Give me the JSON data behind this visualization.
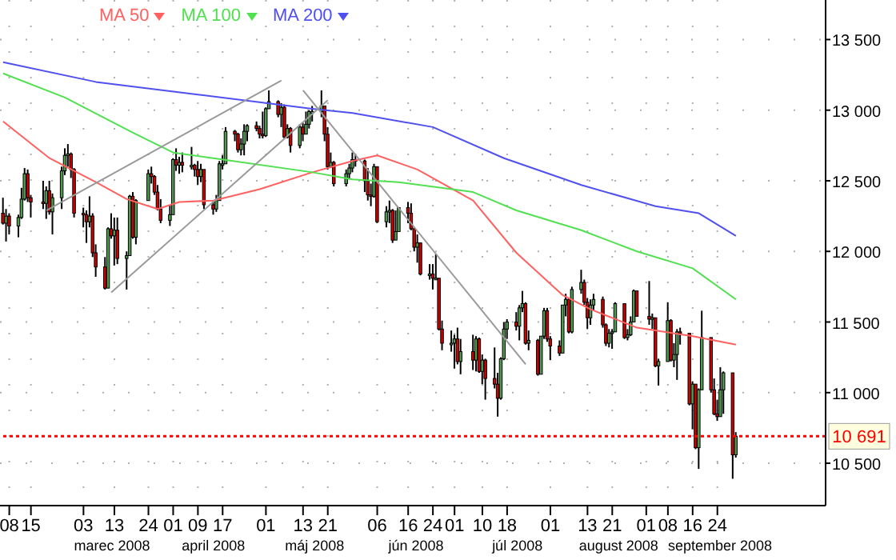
{
  "chart_data": {
    "type": "candlestick",
    "legend": "top left",
    "grid": true,
    "xlim": [
      "2008-02-05",
      "2008-10-29"
    ],
    "xticks": [
      {
        "value": "2008-02-08",
        "label": "08"
      },
      {
        "value": "2008-02-15",
        "label": "15"
      },
      {
        "value": "2008-03-03",
        "label": "03"
      },
      {
        "value": "2008-03-13",
        "label": "13"
      },
      {
        "value": "2008-03-24",
        "label": "24"
      },
      {
        "value": "2008-04-01",
        "label": "01"
      },
      {
        "value": "2008-04-09",
        "label": "09"
      },
      {
        "value": "2008-04-17",
        "label": "17"
      },
      {
        "value": "2008-05-01",
        "label": "01"
      },
      {
        "value": "2008-05-13",
        "label": "13"
      },
      {
        "value": "2008-05-21",
        "label": "21"
      },
      {
        "value": "2008-06-06",
        "label": "06"
      },
      {
        "value": "2008-06-16",
        "label": "16"
      },
      {
        "value": "2008-06-24",
        "label": "24"
      },
      {
        "value": "2008-07-01",
        "label": "01"
      },
      {
        "value": "2008-07-10",
        "label": "10"
      },
      {
        "value": "2008-07-18",
        "label": "18"
      },
      {
        "value": "2008-08-01",
        "label": "01"
      },
      {
        "value": "2008-08-13",
        "label": "13"
      },
      {
        "value": "2008-08-21",
        "label": "21"
      },
      {
        "value": "2008-09-01",
        "label": "01"
      },
      {
        "value": "2008-09-08",
        "label": "08"
      },
      {
        "value": "2008-09-16",
        "label": "16"
      },
      {
        "value": "2008-09-24",
        "label": "24"
      }
    ],
    "ylim": [
      10200,
      13780
    ],
    "yticks": [
      {
        "value": 10500,
        "label": "10 500"
      },
      {
        "value": 11000,
        "label": "11 000"
      },
      {
        "value": 11500,
        "label": "11 500"
      },
      {
        "value": 12000,
        "label": "12 000"
      },
      {
        "value": 12500,
        "label": "12 500"
      },
      {
        "value": 13000,
        "label": "13 000"
      },
      {
        "value": 13500,
        "label": "13 500"
      }
    ],
    "annotations": [
      "marec 2008",
      "april 2008",
      "máj 2008",
      "jún 2008",
      "júl 2008",
      "august 2008",
      "september 2008"
    ],
    "ref_lines": [
      {
        "axis": "y",
        "value": 10691,
        "label": "10 691",
        "color": "#ff0000",
        "line_style": "dotted"
      }
    ],
    "x": [
      "2008-02-06",
      "2008-02-07",
      "2008-02-08",
      "2008-02-11",
      "2008-02-12",
      "2008-02-13",
      "2008-02-14",
      "2008-02-15",
      "2008-02-19",
      "2008-02-20",
      "2008-02-21",
      "2008-02-22",
      "2008-02-25",
      "2008-02-26",
      "2008-02-27",
      "2008-02-28",
      "2008-02-29",
      "2008-03-03",
      "2008-03-04",
      "2008-03-05",
      "2008-03-06",
      "2008-03-07",
      "2008-03-10",
      "2008-03-11",
      "2008-03-12",
      "2008-03-13",
      "2008-03-14",
      "2008-03-17",
      "2008-03-18",
      "2008-03-19",
      "2008-03-20",
      "2008-03-24",
      "2008-03-25",
      "2008-03-26",
      "2008-03-27",
      "2008-03-28",
      "2008-03-31",
      "2008-04-01",
      "2008-04-02",
      "2008-04-03",
      "2008-04-04",
      "2008-04-07",
      "2008-04-08",
      "2008-04-09",
      "2008-04-10",
      "2008-04-11",
      "2008-04-14",
      "2008-04-15",
      "2008-04-16",
      "2008-04-17",
      "2008-04-18",
      "2008-04-21",
      "2008-04-22",
      "2008-04-23",
      "2008-04-24",
      "2008-04-25",
      "2008-04-28",
      "2008-04-29",
      "2008-04-30",
      "2008-05-01",
      "2008-05-02",
      "2008-05-05",
      "2008-05-06",
      "2008-05-07",
      "2008-05-08",
      "2008-05-09",
      "2008-05-12",
      "2008-05-13",
      "2008-05-14",
      "2008-05-15",
      "2008-05-16",
      "2008-05-19",
      "2008-05-20",
      "2008-05-21",
      "2008-05-22",
      "2008-05-23",
      "2008-05-27",
      "2008-05-28",
      "2008-05-29",
      "2008-05-30",
      "2008-06-02",
      "2008-06-03",
      "2008-06-04",
      "2008-06-05",
      "2008-06-06",
      "2008-06-09",
      "2008-06-10",
      "2008-06-11",
      "2008-06-12",
      "2008-06-13",
      "2008-06-16",
      "2008-06-17",
      "2008-06-18",
      "2008-06-19",
      "2008-06-20",
      "2008-06-23",
      "2008-06-24",
      "2008-06-25",
      "2008-06-26",
      "2008-06-27",
      "2008-06-30",
      "2008-07-01",
      "2008-07-02",
      "2008-07-03",
      "2008-07-07",
      "2008-07-08",
      "2008-07-09",
      "2008-07-10",
      "2008-07-11",
      "2008-07-14",
      "2008-07-15",
      "2008-07-16",
      "2008-07-17",
      "2008-07-18",
      "2008-07-21",
      "2008-07-22",
      "2008-07-23",
      "2008-07-24",
      "2008-07-25",
      "2008-07-28",
      "2008-07-29",
      "2008-07-30",
      "2008-07-31",
      "2008-08-01",
      "2008-08-04",
      "2008-08-05",
      "2008-08-06",
      "2008-08-07",
      "2008-08-08",
      "2008-08-11",
      "2008-08-12",
      "2008-08-13",
      "2008-08-14",
      "2008-08-15",
      "2008-08-18",
      "2008-08-19",
      "2008-08-20",
      "2008-08-21",
      "2008-08-22",
      "2008-08-25",
      "2008-08-26",
      "2008-08-27",
      "2008-08-28",
      "2008-08-29",
      "2008-09-02",
      "2008-09-03",
      "2008-09-04",
      "2008-09-05",
      "2008-09-08",
      "2008-09-09",
      "2008-09-10",
      "2008-09-11",
      "2008-09-12",
      "2008-09-15",
      "2008-09-16",
      "2008-09-17",
      "2008-09-18",
      "2008-09-19",
      "2008-09-22",
      "2008-09-23",
      "2008-09-24",
      "2008-09-25",
      "2008-09-26",
      "2008-09-29",
      "2008-09-30"
    ],
    "ohlc": [
      [
        12270,
        12380,
        12190,
        12200
      ],
      [
        12200,
        12300,
        12070,
        12250
      ],
      [
        12250,
        12270,
        12120,
        12180
      ],
      [
        12180,
        12260,
        12100,
        12240
      ],
      [
        12240,
        12450,
        12230,
        12370
      ],
      [
        12370,
        12590,
        12360,
        12550
      ],
      [
        12550,
        12580,
        12350,
        12380
      ],
      [
        12380,
        12400,
        12240,
        12350
      ],
      [
        12350,
        12500,
        12300,
        12340
      ],
      [
        12340,
        12460,
        12230,
        12430
      ],
      [
        12430,
        12500,
        12260,
        12280
      ],
      [
        12280,
        12410,
        12120,
        12380
      ],
      [
        12380,
        12600,
        12300,
        12570
      ],
      [
        12570,
        12730,
        12540,
        12680
      ],
      [
        12680,
        12760,
        12600,
        12690
      ],
      [
        12690,
        12700,
        12520,
        12580
      ],
      [
        12580,
        12590,
        12240,
        12270
      ],
      [
        12270,
        12310,
        12170,
        12260
      ],
      [
        12260,
        12290,
        12060,
        12210
      ],
      [
        12210,
        12390,
        12170,
        12250
      ],
      [
        12250,
        12270,
        11960,
        11990
      ],
      [
        11990,
        12050,
        11820,
        11890
      ],
      [
        11890,
        11960,
        11730,
        11740
      ],
      [
        11740,
        12170,
        11740,
        12160
      ],
      [
        12160,
        12270,
        12090,
        12110
      ],
      [
        12110,
        12240,
        11900,
        12150
      ],
      [
        12150,
        12240,
        11910,
        11950
      ],
      [
        11950,
        12000,
        11730,
        11970
      ],
      [
        11970,
        12400,
        11970,
        12390
      ],
      [
        12390,
        12420,
        12090,
        12100
      ],
      [
        12100,
        12370,
        12050,
        12360
      ],
      [
        12360,
        12580,
        12360,
        12550
      ],
      [
        12550,
        12600,
        12480,
        12530
      ],
      [
        12530,
        12540,
        12400,
        12420
      ],
      [
        12420,
        12470,
        12290,
        12300
      ],
      [
        12300,
        12370,
        12200,
        12220
      ],
      [
        12220,
        12330,
        12180,
        12260
      ],
      [
        12260,
        12660,
        12260,
        12650
      ],
      [
        12650,
        12730,
        12570,
        12610
      ],
      [
        12610,
        12670,
        12550,
        12630
      ],
      [
        12630,
        12700,
        12560,
        12610
      ],
      [
        12610,
        12740,
        12580,
        12610
      ],
      [
        12610,
        12620,
        12530,
        12580
      ],
      [
        12580,
        12640,
        12470,
        12530
      ],
      [
        12530,
        12620,
        12490,
        12580
      ],
      [
        12580,
        12580,
        12300,
        12330
      ],
      [
        12330,
        12360,
        12260,
        12300
      ],
      [
        12300,
        12400,
        12280,
        12360
      ],
      [
        12360,
        12640,
        12360,
        12620
      ],
      [
        12620,
        12680,
        12580,
        12620
      ],
      [
        12620,
        12880,
        12620,
        12850
      ],
      [
        12850,
        12860,
        12780,
        12830
      ],
      [
        12830,
        12840,
        12700,
        12720
      ],
      [
        12720,
        12800,
        12680,
        12760
      ],
      [
        12760,
        12900,
        12680,
        12850
      ],
      [
        12850,
        12900,
        12780,
        12890
      ],
      [
        12890,
        12920,
        12850,
        12870
      ],
      [
        12870,
        12890,
        12800,
        12830
      ],
      [
        12830,
        12990,
        12800,
        12820
      ],
      [
        12820,
        13020,
        12810,
        13010
      ],
      [
        13010,
        13140,
        13010,
        13060
      ],
      [
        13060,
        13070,
        12950,
        12970
      ],
      [
        12970,
        13050,
        12880,
        13020
      ],
      [
        13020,
        13040,
        12800,
        12810
      ],
      [
        12810,
        12900,
        12800,
        12870
      ],
      [
        12870,
        12880,
        12700,
        12750
      ],
      [
        12750,
        12900,
        12730,
        12880
      ],
      [
        12880,
        12910,
        12780,
        12830
      ],
      [
        12830,
        12990,
        12830,
        12900
      ],
      [
        12900,
        13000,
        12870,
        12990
      ],
      [
        12990,
        13030,
        12920,
        12990
      ],
      [
        12990,
        13140,
        12950,
        13030
      ],
      [
        13030,
        13030,
        12780,
        12830
      ],
      [
        12830,
        12880,
        12580,
        12600
      ],
      [
        12600,
        12700,
        12590,
        12630
      ],
      [
        12630,
        12640,
        12460,
        12480
      ],
      [
        12480,
        12580,
        12460,
        12550
      ],
      [
        12550,
        12620,
        12510,
        12590
      ],
      [
        12590,
        12700,
        12560,
        12650
      ],
      [
        12650,
        12690,
        12600,
        12640
      ],
      [
        12640,
        12650,
        12420,
        12500
      ],
      [
        12500,
        12590,
        12360,
        12400
      ],
      [
        12400,
        12480,
        12320,
        12390
      ],
      [
        12390,
        12620,
        12380,
        12600
      ],
      [
        12600,
        12600,
        12200,
        12210
      ],
      [
        12210,
        12320,
        12170,
        12280
      ],
      [
        12280,
        12360,
        12200,
        12290
      ],
      [
        12290,
        12300,
        12060,
        12080
      ],
      [
        12080,
        12290,
        12080,
        12140
      ],
      [
        12140,
        12310,
        12140,
        12310
      ],
      [
        12310,
        12350,
        12200,
        12270
      ],
      [
        12270,
        12340,
        12150,
        12160
      ],
      [
        12160,
        12170,
        12000,
        12030
      ],
      [
        12030,
        12120,
        11920,
        12060
      ],
      [
        12060,
        12060,
        11830,
        11840
      ],
      [
        11840,
        11910,
        11800,
        11840
      ],
      [
        11840,
        11910,
        11730,
        11810
      ],
      [
        11810,
        11980,
        11800,
        11810
      ],
      [
        11810,
        11810,
        11440,
        11450
      ],
      [
        11450,
        11510,
        11300,
        11350
      ],
      [
        11350,
        11440,
        11290,
        11350
      ],
      [
        11350,
        11410,
        11170,
        11380
      ],
      [
        11380,
        11460,
        11200,
        11220
      ],
      [
        11220,
        11380,
        11130,
        11290
      ],
      [
        11290,
        11410,
        11160,
        11230
      ],
      [
        11230,
        11400,
        11150,
        11380
      ],
      [
        11380,
        11390,
        11140,
        11150
      ],
      [
        11150,
        11270,
        11060,
        11230
      ],
      [
        11230,
        11240,
        10950,
        11100
      ],
      [
        11100,
        11320,
        11030,
        11060
      ],
      [
        11060,
        11140,
        10830,
        10960
      ],
      [
        10960,
        11250,
        10950,
        11240
      ],
      [
        11240,
        11500,
        11230,
        11450
      ],
      [
        11450,
        11520,
        11380,
        11500
      ],
      [
        11500,
        11570,
        11440,
        11470
      ],
      [
        11470,
        11620,
        11370,
        11600
      ],
      [
        11600,
        11720,
        11570,
        11630
      ],
      [
        11630,
        11640,
        11340,
        11350
      ],
      [
        11350,
        11440,
        11300,
        11370
      ],
      [
        11370,
        11380,
        11120,
        11130
      ],
      [
        11130,
        11400,
        11130,
        11400
      ],
      [
        11400,
        11600,
        11380,
        11580
      ],
      [
        11580,
        11600,
        11360,
        11380
      ],
      [
        11380,
        11400,
        11230,
        11330
      ],
      [
        11330,
        11370,
        11260,
        11280
      ],
      [
        11280,
        11620,
        11280,
        11620
      ],
      [
        11620,
        11700,
        11540,
        11660
      ],
      [
        11660,
        11670,
        11420,
        11430
      ],
      [
        11430,
        11750,
        11420,
        11730
      ],
      [
        11730,
        11870,
        11700,
        11780
      ],
      [
        11780,
        11800,
        11620,
        11640
      ],
      [
        11640,
        11670,
        11450,
        11530
      ],
      [
        11530,
        11660,
        11480,
        11620
      ],
      [
        11620,
        11700,
        11580,
        11660
      ],
      [
        11660,
        11680,
        11460,
        11480
      ],
      [
        11480,
        11490,
        11330,
        11350
      ],
      [
        11350,
        11450,
        11320,
        11420
      ],
      [
        11420,
        11450,
        11310,
        11430
      ],
      [
        11430,
        11640,
        11430,
        11630
      ],
      [
        11630,
        11630,
        11380,
        11390
      ],
      [
        11390,
        11450,
        11370,
        11410
      ],
      [
        11410,
        11540,
        11400,
        11500
      ],
      [
        11500,
        11730,
        11500,
        11720
      ],
      [
        11720,
        11720,
        11540,
        11540
      ],
      [
        11540,
        11790,
        11480,
        11520
      ],
      [
        11520,
        11560,
        11450,
        11530
      ],
      [
        11530,
        11530,
        11180,
        11190
      ],
      [
        11190,
        11240,
        11050,
        11220
      ],
      [
        11220,
        11640,
        11220,
        11510
      ],
      [
        11510,
        11520,
        11220,
        11230
      ],
      [
        11230,
        11350,
        11180,
        11270
      ],
      [
        11270,
        11450,
        11090,
        11430
      ],
      [
        11430,
        11460,
        11340,
        11420
      ],
      [
        11420,
        11420,
        10910,
        10920
      ],
      [
        10920,
        11080,
        10740,
        11060
      ],
      [
        11060,
        11060,
        10600,
        10610
      ],
      [
        10610,
        11030,
        10460,
        11020
      ],
      [
        11020,
        11580,
        11020,
        11390
      ],
      [
        11390,
        11390,
        11000,
        11020
      ],
      [
        11020,
        11100,
        10840,
        10850
      ],
      [
        10850,
        10950,
        10800,
        10830
      ],
      [
        10830,
        11180,
        10830,
        11020
      ],
      [
        11020,
        11150,
        10850,
        11140
      ],
      [
        11140,
        11140,
        10390,
        10560
      ],
      [
        10560,
        10720,
        10540,
        10691
      ]
    ],
    "series": [
      {
        "name": "MA 50",
        "type": "line",
        "color": "#ff6060",
        "x": [
          "2008-02-06",
          "2008-02-21",
          "2008-03-07",
          "2008-03-17",
          "2008-03-27",
          "2008-04-03",
          "2008-04-14",
          "2008-04-29",
          "2008-05-16",
          "2008-05-29",
          "2008-06-06",
          "2008-06-19",
          "2008-07-07",
          "2008-07-21",
          "2008-08-05",
          "2008-08-14",
          "2008-08-29",
          "2008-09-16",
          "2008-09-30"
        ],
        "values": [
          12920,
          12660,
          12490,
          12370,
          12300,
          12350,
          12360,
          12440,
          12560,
          12640,
          12680,
          12580,
          12360,
          11990,
          11690,
          11590,
          11460,
          11400,
          11340
        ]
      },
      {
        "name": "MA 100",
        "type": "line",
        "color": "#50e050",
        "x": [
          "2008-02-06",
          "2008-02-26",
          "2008-03-19",
          "2008-04-01",
          "2008-04-14",
          "2008-05-16",
          "2008-05-29",
          "2008-06-13",
          "2008-07-07",
          "2008-07-21",
          "2008-08-11",
          "2008-08-29",
          "2008-09-16",
          "2008-09-30"
        ],
        "values": [
          13260,
          13090,
          12840,
          12700,
          12660,
          12560,
          12510,
          12490,
          12420,
          12290,
          12150,
          12000,
          11880,
          11660
        ]
      },
      {
        "name": "MA 200",
        "type": "line",
        "color": "#5050f0",
        "x": [
          "2008-02-06",
          "2008-03-07",
          "2008-04-09",
          "2008-05-16",
          "2008-05-29",
          "2008-06-24",
          "2008-07-17",
          "2008-08-11",
          "2008-09-04",
          "2008-09-18",
          "2008-09-30"
        ],
        "values": [
          13340,
          13200,
          13110,
          13010,
          12980,
          12880,
          12660,
          12470,
          12320,
          12270,
          12110
        ]
      },
      {
        "type": "line",
        "color": "#999999",
        "x": [
          "2008-02-20",
          "2008-05-06"
        ],
        "values": [
          12290,
          13210
        ]
      },
      {
        "type": "line",
        "color": "#999999",
        "x": [
          "2008-03-12",
          "2008-05-21"
        ],
        "values": [
          11710,
          13070
        ]
      },
      {
        "type": "line",
        "color": "#999999",
        "x": [
          "2008-05-13",
          "2008-07-24"
        ],
        "values": [
          13140,
          11200
        ]
      }
    ]
  }
}
